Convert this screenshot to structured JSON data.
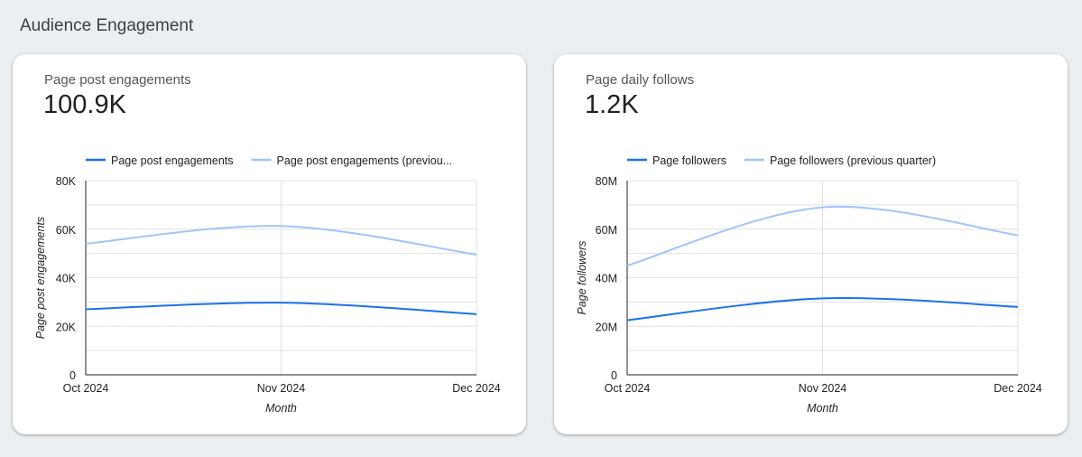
{
  "page_title": "Audience Engagement",
  "colors": {
    "current": "#1a73e8",
    "previous": "#9fc5f8"
  },
  "chart_data": [
    {
      "type": "line",
      "metric_name": "Page post engagements",
      "metric_value": "100.9K",
      "categories": [
        "Oct 2024",
        "Nov 2024",
        "Dec 2024"
      ],
      "xlabel": "Month",
      "ylabel": "Page post engagements",
      "ylim": [
        0,
        80000
      ],
      "yticks": [
        "0",
        "20K",
        "40K",
        "60K",
        "80K"
      ],
      "ytick_values": [
        0,
        20000,
        40000,
        60000,
        80000
      ],
      "grid": true,
      "legend": "top",
      "series": [
        {
          "name": "Page post engagements",
          "values": [
            27000,
            29700,
            25000
          ]
        },
        {
          "name": "Page post engagements (previou...",
          "values": [
            54000,
            61300,
            49500
          ]
        }
      ]
    },
    {
      "type": "line",
      "metric_name": "Page daily follows",
      "metric_value": "1.2K",
      "categories": [
        "Oct 2024",
        "Nov 2024",
        "Dec 2024"
      ],
      "xlabel": "Month",
      "ylabel": "Page followers",
      "ylim": [
        0,
        80000000
      ],
      "yticks": [
        "0",
        "20M",
        "40M",
        "60M",
        "80M"
      ],
      "ytick_values": [
        0,
        20000000,
        40000000,
        60000000,
        80000000
      ],
      "grid": true,
      "legend": "top",
      "series": [
        {
          "name": "Page followers",
          "values": [
            22500000,
            31500000,
            28000000
          ]
        },
        {
          "name": "Page followers (previous quarter)",
          "values": [
            45000000,
            69000000,
            57500000
          ]
        }
      ]
    }
  ]
}
